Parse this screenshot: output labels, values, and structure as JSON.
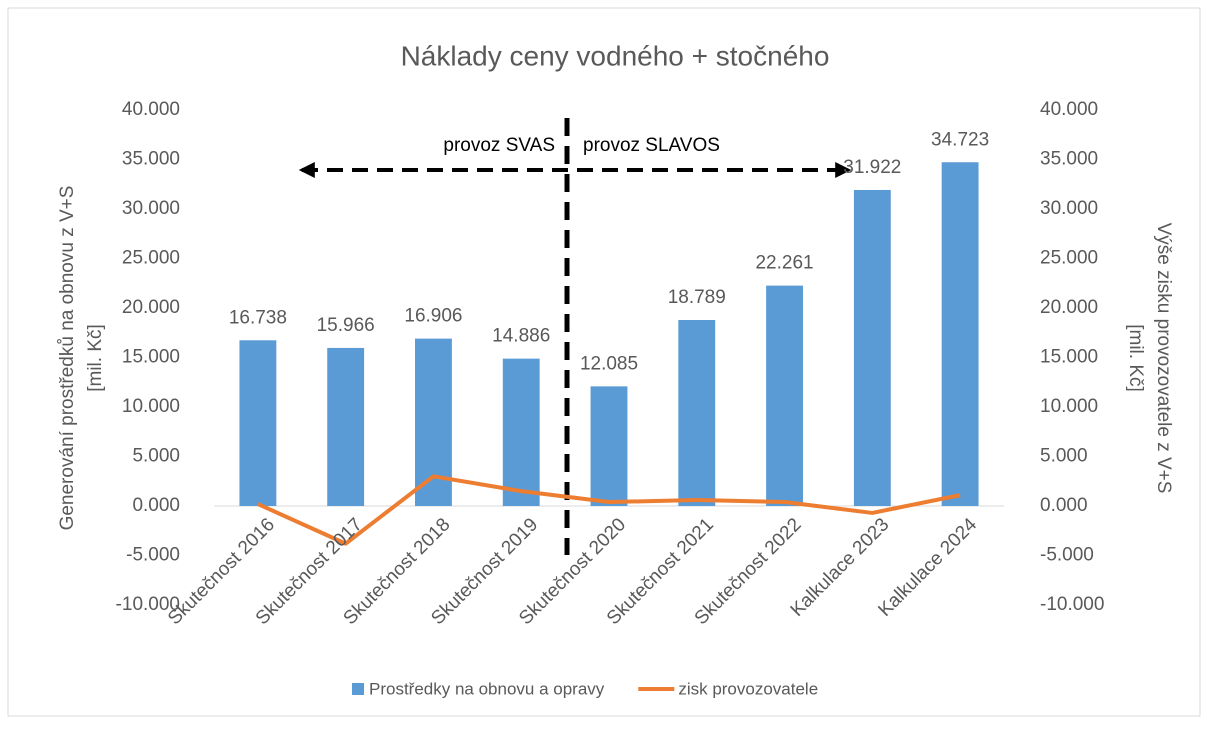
{
  "chart_data": {
    "type": "bar_line",
    "title": "Náklady ceny vodného + stočného",
    "ylabel": [
      "Generování prostředků na obnovu z V+S",
      "[mil. Kč]"
    ],
    "y2label": [
      "Výše zisku provozovatele z V+S",
      "[mil. Kč]"
    ],
    "categories": [
      "Skutečnost 2016",
      "Skutečnost 2017",
      "Skutečnost 2018",
      "Skutečnost 2019",
      "Skutečnost 2020",
      "Skutečnost 2021",
      "Skutečnost 2022",
      "Kalkulace 2023",
      "Kalkulace 2024"
    ],
    "series": [
      {
        "name": "Prostředky na obnovu a opravy",
        "type": "bar",
        "color": "#5b9bd5",
        "values": [
          16.738,
          15.966,
          16.906,
          14.886,
          12.085,
          18.789,
          22.261,
          31.922,
          34.723
        ]
      },
      {
        "name": "zisk provozovatele",
        "type": "line",
        "axis": "y2",
        "color": "#ed7d31",
        "values": [
          0.2,
          -3.8,
          3.0,
          1.5,
          0.4,
          0.6,
          0.4,
          -0.7,
          1.1
        ]
      }
    ],
    "ylim": [
      -10,
      40
    ],
    "yticks": [
      {
        "value": -10,
        "label": "-10.000"
      },
      {
        "value": -5,
        "label": "-5.000"
      },
      {
        "value": 0,
        "label": "0.000"
      },
      {
        "value": 5,
        "label": "5.000"
      },
      {
        "value": 10,
        "label": "10.000"
      },
      {
        "value": 15,
        "label": "15.000"
      },
      {
        "value": 20,
        "label": "20.000"
      },
      {
        "value": 25,
        "label": "25.000"
      },
      {
        "value": 30,
        "label": "30.000"
      },
      {
        "value": 35,
        "label": "35.000"
      },
      {
        "value": 40,
        "label": "40.000"
      }
    ],
    "y2lim": [
      -10,
      40
    ],
    "y2ticks": [
      {
        "value": -10,
        "label": "-10.000"
      },
      {
        "value": -5,
        "label": "-5.000"
      },
      {
        "value": 0,
        "label": "0.000"
      },
      {
        "value": 5,
        "label": "5.000"
      },
      {
        "value": 10,
        "label": "10.000"
      },
      {
        "value": 15,
        "label": "15.000"
      },
      {
        "value": 20,
        "label": "20.000"
      },
      {
        "value": 25,
        "label": "25.000"
      },
      {
        "value": 30,
        "label": "30.000"
      },
      {
        "value": 35,
        "label": "35.000"
      },
      {
        "value": 40,
        "label": "40.000"
      }
    ],
    "annotations": [
      "provoz SVAS",
      "provoz SLAVOS"
    ]
  }
}
